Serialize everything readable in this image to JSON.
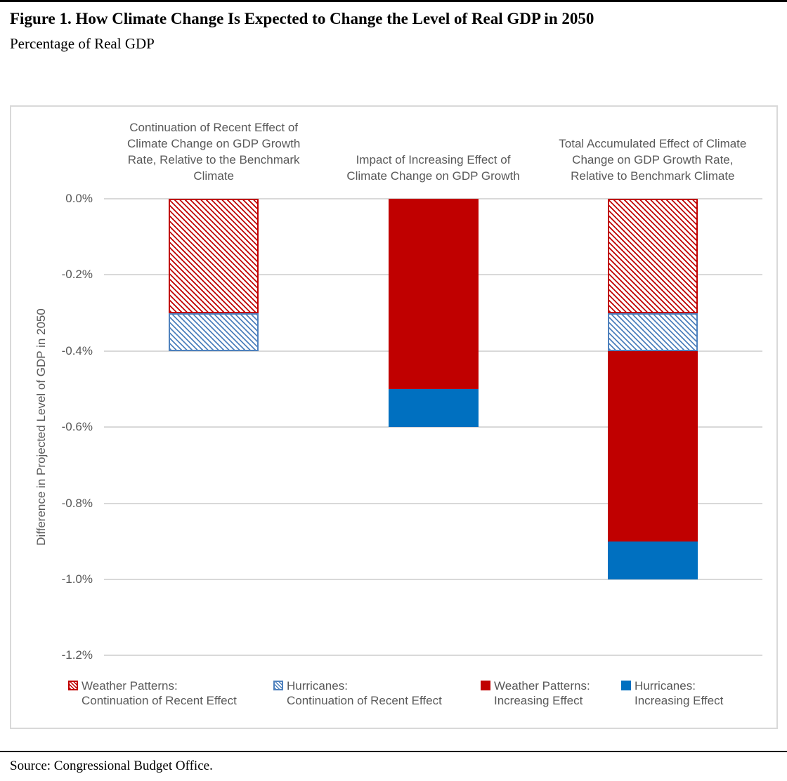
{
  "page": {
    "title": "Figure 1. How Climate Change Is Expected to Change the Level of Real GDP in 2050",
    "subtitle": "Percentage of Real GDP",
    "source": "Source: Congressional Budget Office."
  },
  "colors": {
    "weather_red": "#C00000",
    "hurricanes_blue_solid": "#0070C0",
    "hurricanes_blue_hatch": "#4E81BD",
    "gridline_gray": "#D9D9D9",
    "chart_text_gray": "#595959"
  },
  "chart_data": {
    "type": "bar",
    "stacked": true,
    "grid": true,
    "legend_position": "bottom",
    "ylabel": "Difference in Projected Level of GDP in 2050",
    "ylim": [
      -1.2,
      0.0
    ],
    "yticks": [
      0.0,
      -0.2,
      -0.4,
      -0.6,
      -0.8,
      -1.0,
      -1.2
    ],
    "ytick_labels": [
      "0.0%",
      "-0.2%",
      "-0.4%",
      "-0.6%",
      "-0.8%",
      "-1.0%",
      "-1.2%"
    ],
    "categories": [
      {
        "text": "Continuation of Recent Effect of Climate Change on GDP Growth Rate, Relative to the Benchmark Climate",
        "lines": [
          "Continuation of Recent Effect of",
          "Climate Change on GDP Growth",
          "Rate, Relative to the Benchmark",
          "Climate"
        ]
      },
      {
        "text": "Impact of Increasing Effect of Climate Change on GDP Growth",
        "lines": [
          "Impact of Increasing Effect of",
          "Climate Change on GDP Growth"
        ]
      },
      {
        "text": "Total Accumulated Effect of Climate Change on GDP Growth Rate, Relative to Benchmark Climate",
        "lines": [
          "Total Accumulated Effect of Climate",
          "Change on GDP Growth Rate,",
          "Relative to Benchmark Climate"
        ]
      }
    ],
    "series": [
      {
        "name": "Weather Patterns: Continuation of Recent Effect",
        "legend_lines": [
          "Weather Patterns:",
          "Continuation of Recent Effect"
        ],
        "pattern": "hatched",
        "color": "#C00000",
        "values": [
          -0.3,
          0,
          -0.3
        ]
      },
      {
        "name": "Hurricanes: Continuation of Recent Effect",
        "legend_lines": [
          "Hurricanes:",
          "Continuation of Recent Effect"
        ],
        "pattern": "hatched",
        "color": "#4E81BD",
        "values": [
          -0.1,
          0,
          -0.1
        ]
      },
      {
        "name": "Weather Patterns: Increasing Effect",
        "legend_lines": [
          "Weather Patterns:",
          "Increasing Effect"
        ],
        "pattern": "solid",
        "color": "#C00000",
        "values": [
          0,
          -0.5,
          -0.5
        ]
      },
      {
        "name": "Hurricanes: Increasing Effect",
        "legend_lines": [
          "Hurricanes:",
          "Increasing Effect"
        ],
        "pattern": "solid",
        "color": "#0070C0",
        "values": [
          0,
          -0.1,
          -0.1
        ]
      }
    ]
  }
}
